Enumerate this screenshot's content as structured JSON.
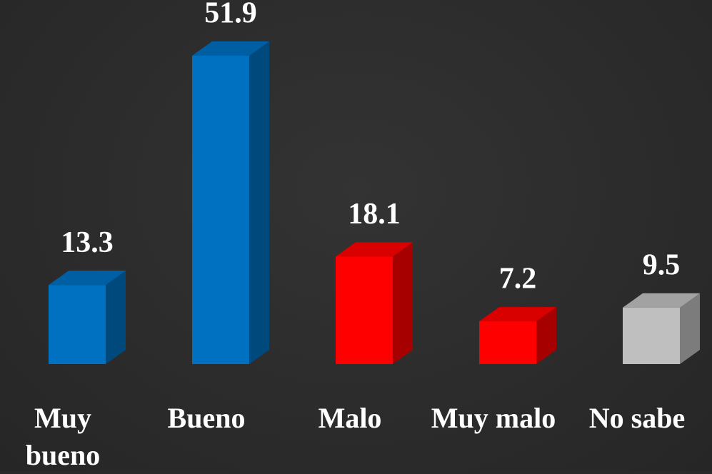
{
  "chart_data": {
    "type": "bar",
    "categories": [
      "Muy bueno",
      "Bueno",
      "Malo",
      "Muy malo",
      "No sabe"
    ],
    "values": [
      13.3,
      51.9,
      18.1,
      7.2,
      9.5
    ],
    "colors": [
      "#0070c0",
      "#0070c0",
      "#ff0000",
      "#ff0000",
      "#bfbfbf"
    ]
  }
}
